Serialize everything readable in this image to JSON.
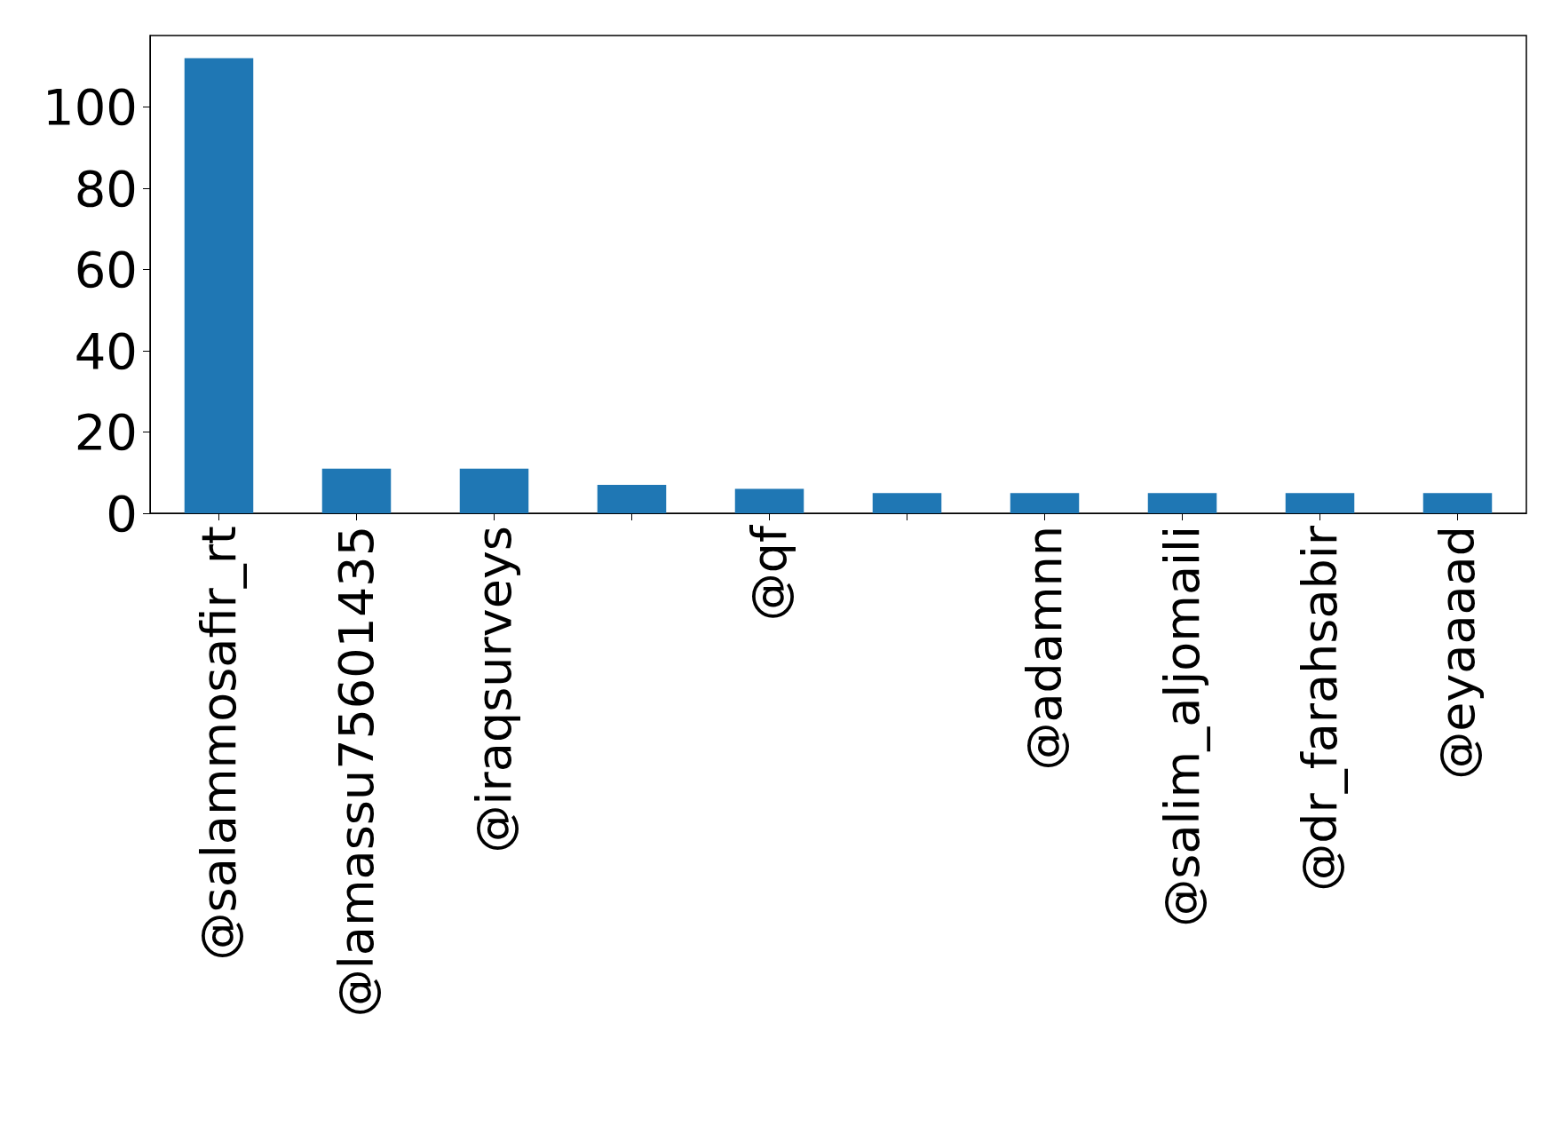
{
  "chart_data": {
    "type": "bar",
    "categories": [
      "@salammosafir_rt",
      "@lamassu75601435",
      "@iraqsurveys",
      null,
      "@qf",
      null,
      "@adamnn",
      "@salim_aljomaili",
      "@dr_farahsabir",
      "@eyaaaad"
    ],
    "values": [
      112,
      11,
      11,
      7,
      6,
      5,
      5,
      5,
      5,
      5
    ],
    "color": "#1f77b4",
    "ylim": [
      0,
      117.6
    ],
    "yticks": [
      0,
      20,
      40,
      60,
      80,
      100
    ],
    "grid": false
  }
}
